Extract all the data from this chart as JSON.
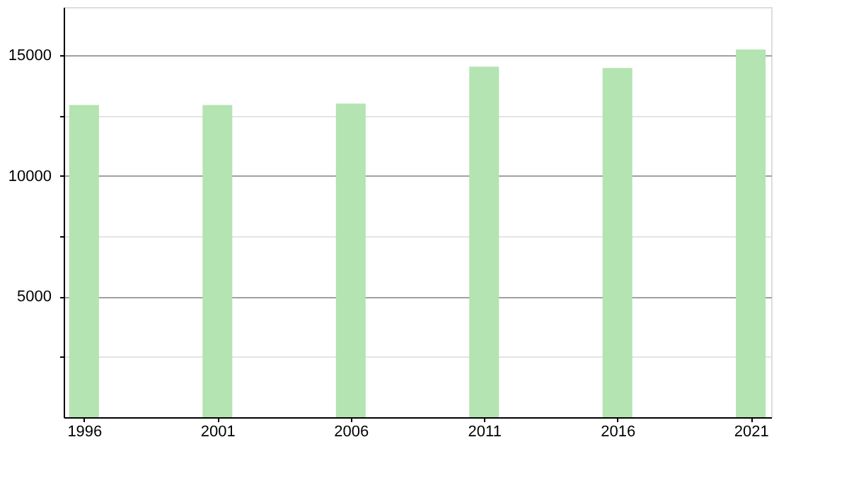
{
  "chart_data": {
    "type": "bar",
    "x": [
      1996,
      2001,
      2006,
      2011,
      2016,
      2021
    ],
    "values": [
      12940,
      12940,
      13000,
      14530,
      14470,
      15240
    ],
    "color": "#b3e4b1",
    "xlim": [
      1995.5,
      2021.5
    ],
    "xticks": [
      1996,
      2001,
      2006,
      2011,
      2016,
      2021
    ],
    "ylim": [
      0,
      17000
    ],
    "yticks": [
      {
        "value": 2500,
        "label": null
      },
      5000,
      {
        "value": 7500,
        "label": null
      },
      10000,
      {
        "value": 12500,
        "label": null
      },
      15000
    ],
    "grid": "y"
  }
}
